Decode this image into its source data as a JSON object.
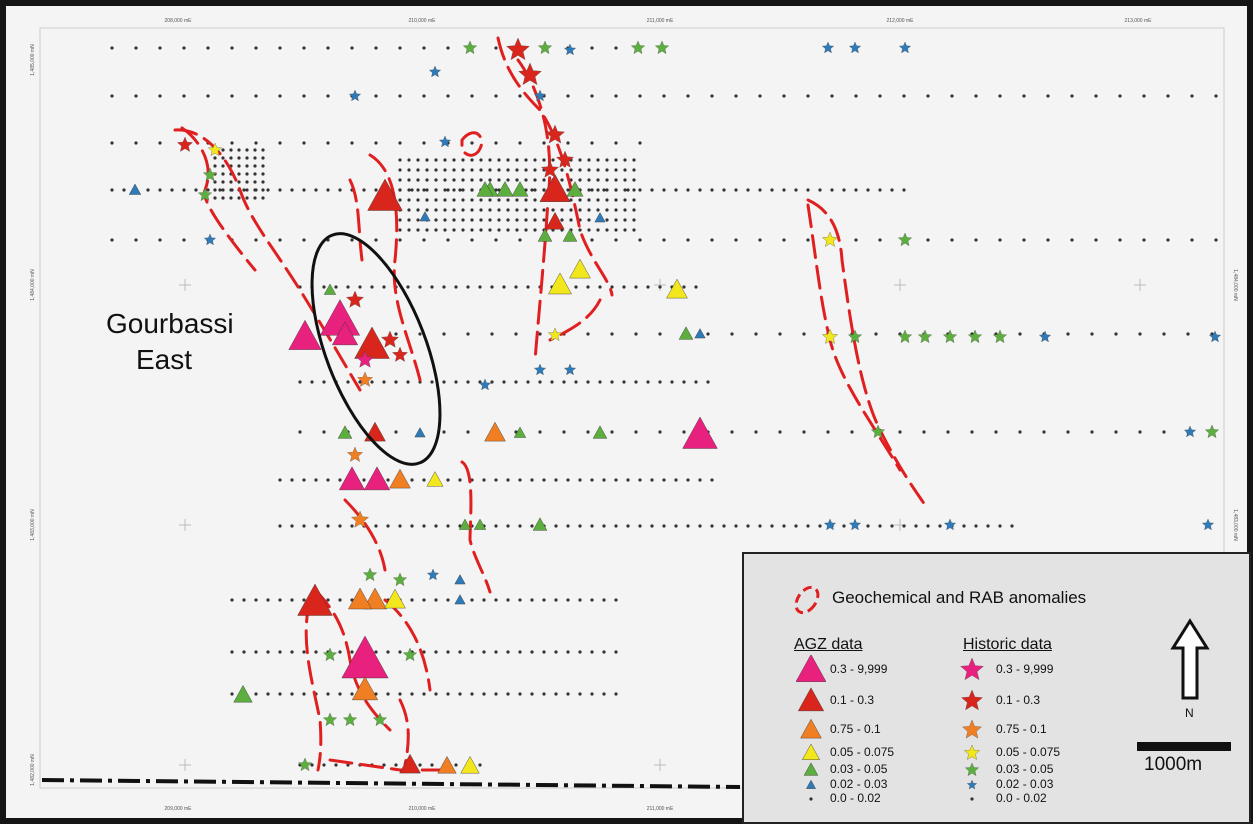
{
  "map": {
    "place_label": {
      "line1": "Gourbassi",
      "line2": "East"
    },
    "top_ticks": [
      "208,000 mE",
      "210,000 mE",
      "211,000 mE",
      "212,000 mE",
      "213,000 mE"
    ],
    "bottom_ticks": [
      "209,000 mE",
      "210,000 mE",
      "211,000 mE"
    ],
    "left_ticks": [
      "1,485,000 mN",
      "1,484,000 mN",
      "1,483,000 mN",
      "1,482,000 mN"
    ],
    "right_ticks": [
      "1,484,000 mN",
      "1,483,000 mN"
    ],
    "colors": {
      "pink": "#e8207e",
      "red": "#d9261c",
      "orange": "#f07e23",
      "yellow": "#f2e61d",
      "green": "#5cae3e",
      "blue": "#2f7ab8",
      "anomaly": "#e02020",
      "frame": "#151515"
    }
  },
  "legend": {
    "title": "Geochemical and RAB anomalies",
    "agz_heading": "AGZ data",
    "historic_heading": "Historic data",
    "agz_rows": [
      "0.3 - 9,999",
      "0.1 - 0.3",
      "0.75 - 0.1",
      "0.05 - 0.075",
      "0.03 - 0.05",
      "0.02 - 0.03",
      "0.0 - 0.02"
    ],
    "historic_rows": [
      "0.3 - 9,999",
      "0.1 - 0.3",
      "0.75 - 0.1",
      "0.05 - 0.075",
      "0.03 - 0.05",
      "0.02 - 0.03",
      "0.0 - 0.02"
    ],
    "north_label": "N",
    "scale_label": "1000m"
  }
}
